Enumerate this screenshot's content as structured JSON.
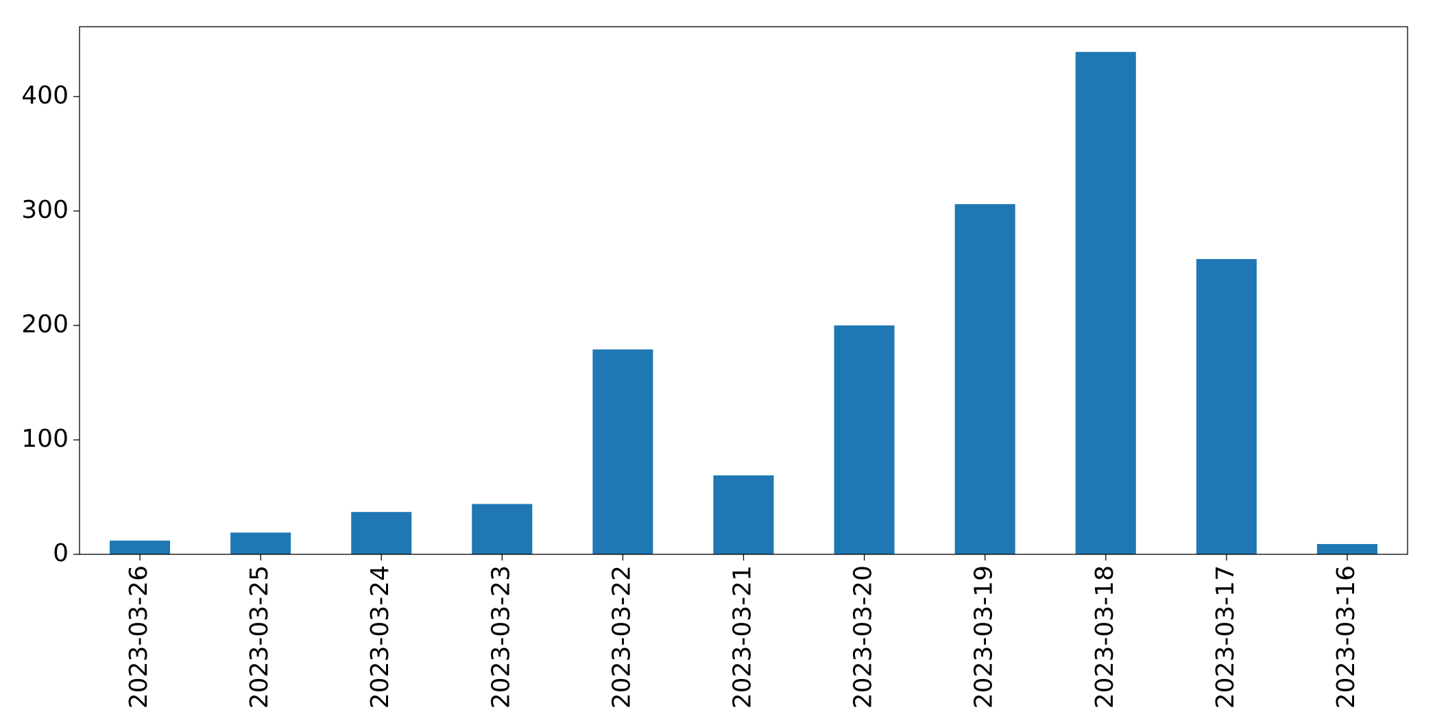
{
  "chart_data": {
    "type": "bar",
    "categories": [
      "2023-03-26",
      "2023-03-25",
      "2023-03-24",
      "2023-03-23",
      "2023-03-22",
      "2023-03-21",
      "2023-03-20",
      "2023-03-19",
      "2023-03-18",
      "2023-03-17",
      "2023-03-16"
    ],
    "values": [
      12,
      19,
      37,
      44,
      179,
      69,
      200,
      306,
      439,
      258,
      9
    ],
    "color": "#1f77b4",
    "ylim": [
      0,
      461
    ],
    "yticks": [
      0,
      100,
      200,
      300,
      400
    ],
    "grid": false
  }
}
